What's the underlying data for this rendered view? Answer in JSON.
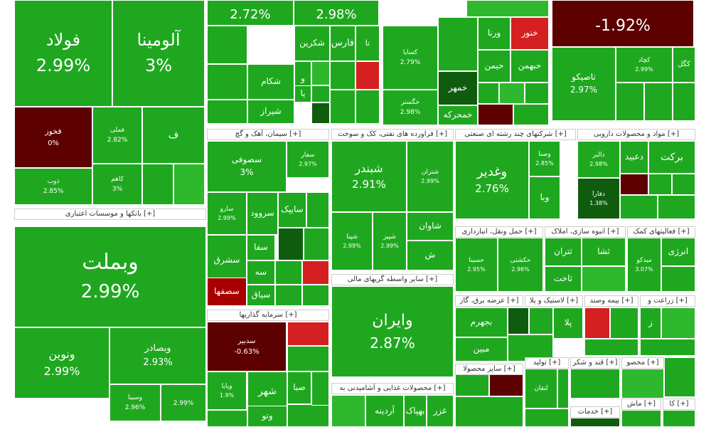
{
  "chart_data": {
    "type": "treemap",
    "colors": {
      "up": "#1fa81f",
      "up_strong": "#2db82d",
      "down": "#5c0000",
      "down_mid": "#a80000",
      "down_light": "#d42020",
      "neutral": "#0f5c0f",
      "header_bg": "#ffffff"
    },
    "sectors": [
      {
        "label": "[+] بانکها و موسسات اعتباری"
      },
      {
        "label": "[+] سیمان، آهک و گچ"
      },
      {
        "label": "[+] فراورده های نفتی، کک و سوخت"
      },
      {
        "label": "[+] شرکتهای چند رشته ای صنعتی"
      },
      {
        "label": "[+] مواد و محصولات دارویی"
      },
      {
        "label": "[+] حمل ونقل، انبارداری"
      },
      {
        "label": "[+] انبوه سازی، املاک"
      },
      {
        "label": "[+] فعالیتهای کمک"
      },
      {
        "label": "[+] سایر واسطه گریهای مالی"
      },
      {
        "label": "[+] سرمایه گذاریها"
      },
      {
        "label": "[+] عرضه برق، گاز"
      },
      {
        "label": "[+] لاستیک و پلا"
      },
      {
        "label": "[+] بیمه وصند"
      },
      {
        "label": "[+] زراعت و"
      },
      {
        "label": "[+] محصولات غذایی و آشامیدنی به"
      },
      {
        "label": "[+] سایر محصولا"
      },
      {
        "label": "[+] تولید"
      },
      {
        "label": "[+] قند و شکر"
      },
      {
        "label": "[+] محصو"
      },
      {
        "label": "[+] خدمات"
      },
      {
        "label": "[+] ماش"
      },
      {
        "label": "[+] کا"
      }
    ],
    "tiles": [
      {
        "name": "فولاد",
        "value": "2.99%",
        "tone": "up"
      },
      {
        "name": "آلومینا",
        "value": "3%",
        "tone": "up"
      },
      {
        "name": "",
        "value": "2.72%",
        "tone": "up"
      },
      {
        "name": "",
        "value": "2.98%",
        "tone": "up"
      },
      {
        "name": "",
        "value": "-1.92%",
        "tone": "down"
      },
      {
        "name": "فخوز",
        "value": "0%",
        "tone": "down"
      },
      {
        "name": "فملی",
        "value": "2.82%",
        "tone": "up"
      },
      {
        "name": "ف",
        "value": "",
        "tone": "up"
      },
      {
        "name": "ذوب",
        "value": "2.85%",
        "tone": "up"
      },
      {
        "name": "کاهم",
        "value": "3%",
        "tone": "up"
      },
      {
        "name": "وبملت",
        "value": "2.99%",
        "tone": "up"
      },
      {
        "name": "ونوین",
        "value": "2.99%",
        "tone": "up"
      },
      {
        "name": "وبصادر",
        "value": "2.93%",
        "tone": "up"
      },
      {
        "name": "وسینا",
        "value": "2.96%",
        "tone": "up"
      },
      {
        "name": "",
        "value": "2.99%",
        "tone": "up"
      },
      {
        "name": "تا",
        "value": "",
        "tone": "up"
      },
      {
        "name": "فارس",
        "value": "",
        "tone": "up"
      },
      {
        "name": "شکرین",
        "value": "",
        "tone": "up"
      },
      {
        "name": "شکام",
        "value": "",
        "tone": "up"
      },
      {
        "name": "شیراز",
        "value": "",
        "tone": "up"
      },
      {
        "name": "و",
        "value": "",
        "tone": "up"
      },
      {
        "name": "یا",
        "value": "",
        "tone": "up"
      },
      {
        "name": "کسایا",
        "value": "2.79%",
        "tone": "up"
      },
      {
        "name": "خگستر",
        "value": "2.98%",
        "tone": "up"
      },
      {
        "name": "ورنا",
        "value": "",
        "tone": "up"
      },
      {
        "name": "خنور",
        "value": "",
        "tone": "down_light"
      },
      {
        "name": "خیمن",
        "value": "",
        "tone": "up"
      },
      {
        "name": "خبهمن",
        "value": "",
        "tone": "up"
      },
      {
        "name": "خمهر",
        "value": "",
        "tone": "neutral"
      },
      {
        "name": "خمحرکه",
        "value": "",
        "tone": "up"
      },
      {
        "name": "کچاد",
        "value": "2.99%",
        "tone": "up"
      },
      {
        "name": "تاصیکو",
        "value": "2.97%",
        "tone": "up"
      },
      {
        "name": "کگل",
        "value": "",
        "tone": "up"
      },
      {
        "name": "سصوفی",
        "value": "3%",
        "tone": "up"
      },
      {
        "name": "سفار",
        "value": "2.97%",
        "tone": "up"
      },
      {
        "name": "سارو",
        "value": "2.99%",
        "tone": "up"
      },
      {
        "name": "سروود",
        "value": "",
        "tone": "up"
      },
      {
        "name": "سایپک",
        "value": "",
        "tone": "up"
      },
      {
        "name": "سفا",
        "value": "",
        "tone": "up"
      },
      {
        "name": "سشرق",
        "value": "",
        "tone": "up"
      },
      {
        "name": "سه",
        "value": "",
        "tone": "up"
      },
      {
        "name": "سصفها",
        "value": "",
        "tone": "down_mid"
      },
      {
        "name": "سیاق",
        "value": "",
        "tone": "up"
      },
      {
        "name": "شبندر",
        "value": "2.91%",
        "tone": "up"
      },
      {
        "name": "شتران",
        "value": "2.99%",
        "tone": "up"
      },
      {
        "name": "شاوان",
        "value": "",
        "tone": "up"
      },
      {
        "name": "شپنا",
        "value": "2.99%",
        "tone": "up"
      },
      {
        "name": "شپیز",
        "value": "2.99%",
        "tone": "up"
      },
      {
        "name": "ش",
        "value": "",
        "tone": "up"
      },
      {
        "name": "وغدیر",
        "value": "2.76%",
        "tone": "up"
      },
      {
        "name": "وصنا",
        "value": "2.85%",
        "tone": "up"
      },
      {
        "name": "وبا",
        "value": "",
        "tone": "up"
      },
      {
        "name": "برکت",
        "value": "",
        "tone": "up"
      },
      {
        "name": "دعبید",
        "value": "",
        "tone": "up"
      },
      {
        "name": "دالبر",
        "value": "2.98%",
        "tone": "up"
      },
      {
        "name": "دفارا",
        "value": "1.38%",
        "tone": "neutral"
      },
      {
        "name": "حسینا",
        "value": "2.95%",
        "tone": "up"
      },
      {
        "name": "حکشتی",
        "value": "2.96%",
        "tone": "up"
      },
      {
        "name": "ثتران",
        "value": "",
        "tone": "up"
      },
      {
        "name": "ثاخت",
        "value": "",
        "tone": "up"
      },
      {
        "name": "ثشا",
        "value": "",
        "tone": "up"
      },
      {
        "name": "انرژی",
        "value": "",
        "tone": "up"
      },
      {
        "name": "میدکو",
        "value": "3.07%",
        "tone": "up"
      },
      {
        "name": "وایران",
        "value": "2.87%",
        "tone": "up"
      },
      {
        "name": "سدبیر",
        "value": "-0.63%",
        "tone": "down"
      },
      {
        "name": "شهر",
        "value": "",
        "tone": "up"
      },
      {
        "name": "صبا",
        "value": "",
        "tone": "up"
      },
      {
        "name": "وتو",
        "value": "",
        "tone": "up"
      },
      {
        "name": "وپایا",
        "value": "1.9%",
        "tone": "up"
      },
      {
        "name": "بجهرم",
        "value": "",
        "tone": "up"
      },
      {
        "name": "مبین",
        "value": "",
        "tone": "up"
      },
      {
        "name": "پلا",
        "value": "",
        "tone": "up"
      },
      {
        "name": "ز",
        "value": "",
        "tone": "up"
      },
      {
        "name": "غزر",
        "value": "",
        "tone": "up"
      },
      {
        "name": "بهپاک",
        "value": "",
        "tone": "up"
      },
      {
        "name": "آردینه",
        "value": "",
        "tone": "up"
      },
      {
        "name": "لنقان",
        "value": "",
        "tone": "up"
      }
    ]
  }
}
